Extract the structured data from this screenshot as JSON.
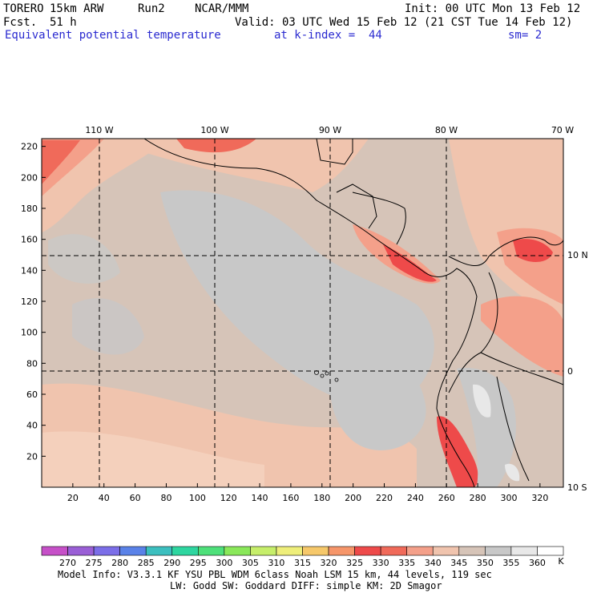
{
  "header": {
    "model": "TORERO",
    "resolution": "15km ARW",
    "run": "Run2",
    "org": "NCAR/MMM",
    "init": "Init: 00 UTC Mon 13 Feb 12",
    "fcst_label": "Fcst.",
    "fcst_value": "51 h",
    "valid": "Valid: 03 UTC Wed 15 Feb 12 (21 CST Tue 14 Feb 12)",
    "field": "Equivalent potential temperature",
    "level": "at k-index =  44",
    "smooth": "sm= 2"
  },
  "map": {
    "lon_labels": [
      "110 W",
      "100 W",
      "90 W",
      "80 W",
      "70 W"
    ],
    "lat_labels": [
      "10 N",
      "0",
      "10 S"
    ],
    "x_ticks": [
      "20",
      "40",
      "60",
      "80",
      "100",
      "120",
      "140",
      "160",
      "180",
      "200",
      "220",
      "240",
      "260",
      "280",
      "300",
      "320"
    ],
    "y_ticks": [
      "220",
      "200",
      "180",
      "160",
      "140",
      "120",
      "100",
      "80",
      "60",
      "40",
      "20"
    ],
    "x_range": [
      0,
      335
    ],
    "y_range": [
      0,
      225
    ]
  },
  "colorbar": {
    "unit": "K",
    "labels": [
      "270",
      "275",
      "280",
      "285",
      "290",
      "295",
      "300",
      "305",
      "310",
      "315",
      "320",
      "325",
      "330",
      "335",
      "340",
      "345",
      "350",
      "355",
      "360"
    ],
    "colors": [
      "#c650c8",
      "#9a5fd6",
      "#7b6ee8",
      "#5a82e8",
      "#3cbfbf",
      "#2ed6a0",
      "#4ee07a",
      "#8ae85a",
      "#c6ee6a",
      "#eeee7a",
      "#f6c86a",
      "#f6966a",
      "#ee4a4a",
      "#f06a5a",
      "#f4a08a",
      "#f0c4ae",
      "#d6c4b8",
      "#c8c8c8",
      "#e8e8e8",
      "#ffffff"
    ]
  },
  "footer": {
    "line1": "Model Info: V3.3.1   KF     YSU PBL  WDM 6class  Noah LSM  15 km,   44 levels,  119 sec",
    "line2": "LW: Godd SW: Goddard DIFF: simple KM: 2D Smagor"
  }
}
